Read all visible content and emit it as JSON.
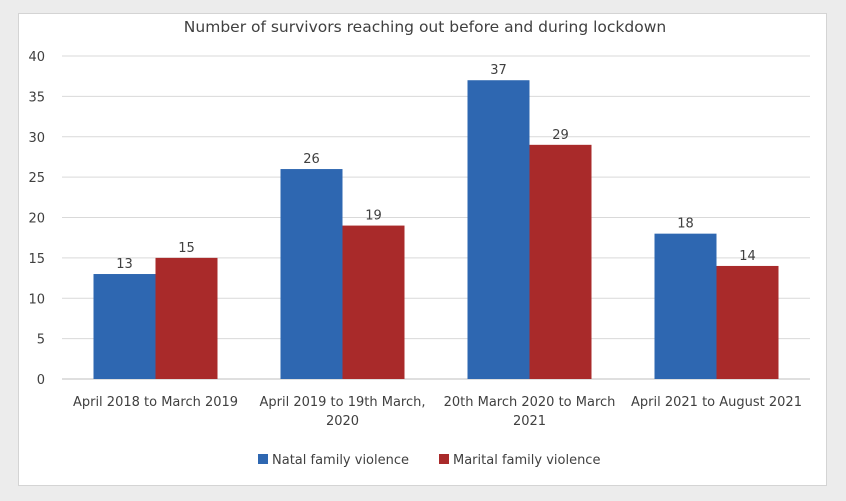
{
  "chart_data": {
    "type": "bar",
    "title": "Number of survivors reaching out before and during lockdown",
    "xlabel": "",
    "ylabel": "",
    "ylim": [
      0,
      40
    ],
    "yticks": [
      0,
      5,
      10,
      15,
      20,
      25,
      30,
      35,
      40
    ],
    "grid": true,
    "legend_position": "bottom",
    "categories": [
      [
        "April 2018 to March 2019"
      ],
      [
        "April 2019 to 19th March,",
        "2020"
      ],
      [
        "20th March 2020 to March",
        "2021"
      ],
      [
        "April 2021 to August 2021"
      ]
    ],
    "series": [
      {
        "name": "Natal family violence",
        "color": "#2e67b1",
        "values": [
          13,
          26,
          37,
          18
        ]
      },
      {
        "name": "Marital family violence",
        "color": "#a92a2a",
        "values": [
          15,
          19,
          29,
          14
        ]
      }
    ]
  }
}
